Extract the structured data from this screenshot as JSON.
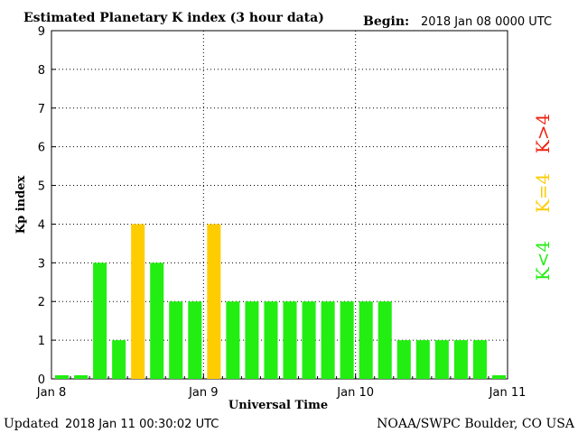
{
  "header": {
    "title": "Estimated Planetary K index (3 hour data)",
    "begin_label": "Begin:",
    "begin_value": "2018 Jan 08 0000 UTC"
  },
  "footer": {
    "updated_label": "Updated",
    "updated_value": "2018 Jan 11 00:30:02 UTC",
    "source": "NOAA/SWPC Boulder, CO USA"
  },
  "legend": [
    {
      "label": "K<4",
      "color": "#22ee11"
    },
    {
      "label": "K=4",
      "color": "#ffcc00"
    },
    {
      "label": "K>4",
      "color": "#ee2211"
    }
  ],
  "colors": {
    "below4": "#22ee11",
    "equal4": "#ffcc00",
    "above4": "#ee2211"
  },
  "chart_data": {
    "type": "bar",
    "title": "Estimated Planetary K index (3 hour data)",
    "xlabel": "Universal Time",
    "ylabel": "Kp index",
    "ylim": [
      0,
      9
    ],
    "yticks": [
      "0",
      "1",
      "2",
      "3",
      "4",
      "5",
      "6",
      "7",
      "8",
      "9"
    ],
    "xticks": [
      "Jan 8",
      "Jan 9",
      "Jan 10",
      "Jan 11"
    ],
    "grid": true,
    "categories": [
      "Jan 8 00",
      "Jan 8 03",
      "Jan 8 06",
      "Jan 8 09",
      "Jan 8 12",
      "Jan 8 15",
      "Jan 8 18",
      "Jan 8 21",
      "Jan 9 00",
      "Jan 9 03",
      "Jan 9 06",
      "Jan 9 09",
      "Jan 9 12",
      "Jan 9 15",
      "Jan 9 18",
      "Jan 9 21",
      "Jan 10 00",
      "Jan 10 03",
      "Jan 10 06",
      "Jan 10 09",
      "Jan 10 12",
      "Jan 10 15",
      "Jan 10 18",
      "Jan 10 21"
    ],
    "values": [
      0,
      0,
      3,
      1,
      4,
      3,
      2,
      2,
      4,
      2,
      2,
      2,
      2,
      2,
      2,
      2,
      2,
      2,
      1,
      1,
      1,
      1,
      1,
      0
    ]
  }
}
